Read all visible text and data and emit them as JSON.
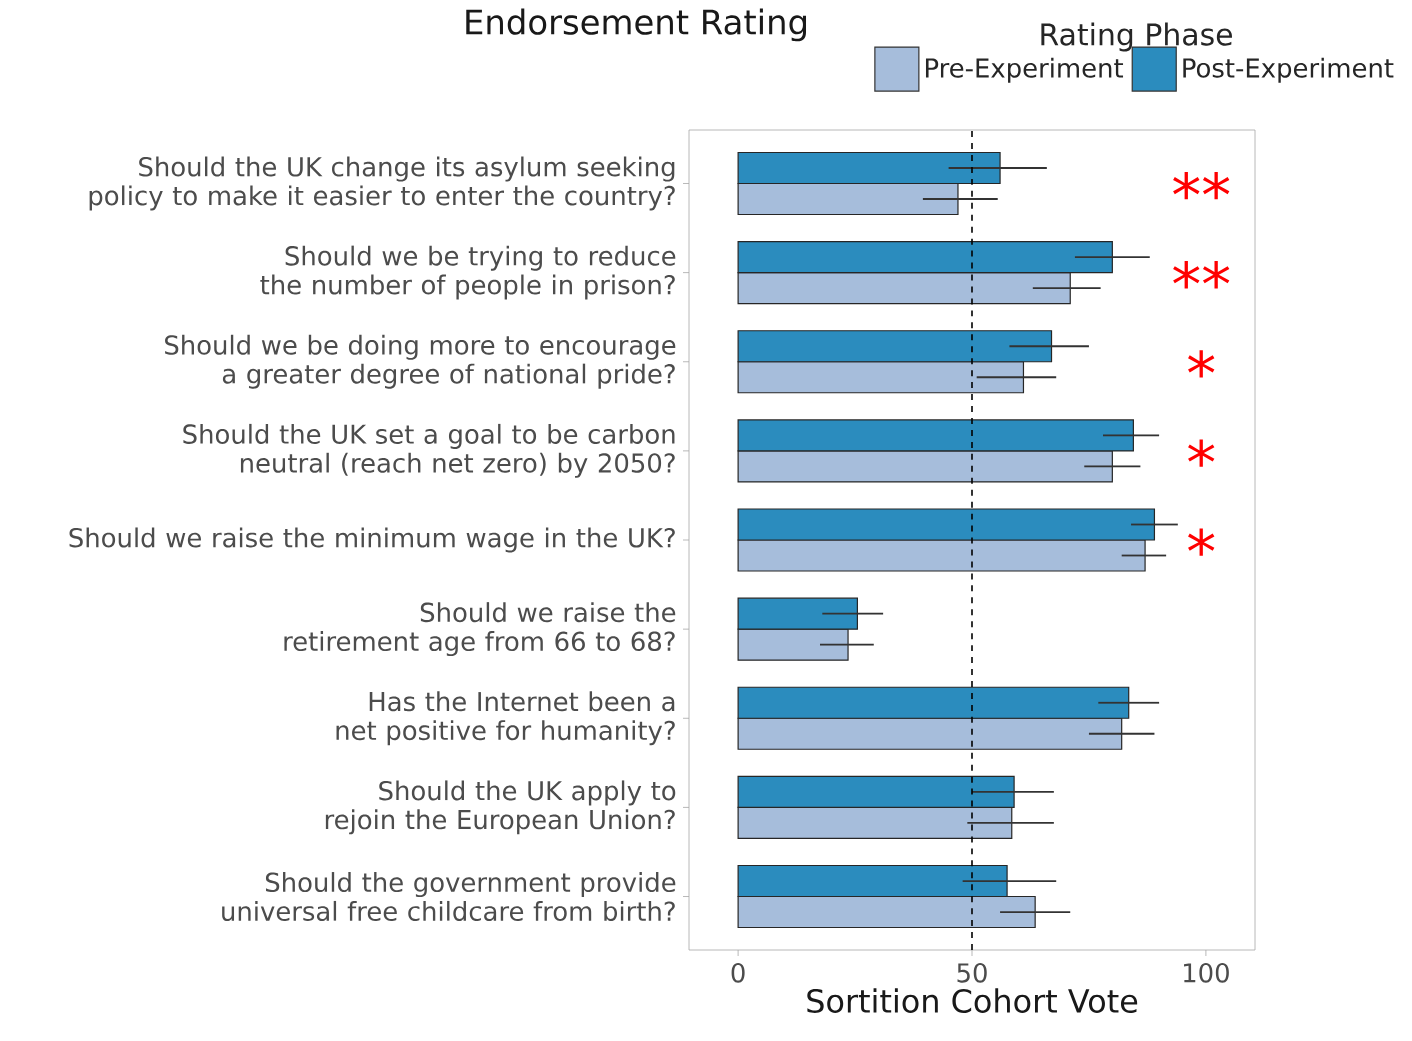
{
  "chart_data": {
    "type": "bar",
    "orientation": "horizontal",
    "title": "Endorsement Rating",
    "xlabel": "Sortition Cohort Vote",
    "legend_title": "Rating Phase",
    "legend": "top right",
    "categories": [
      "Should the UK change its asylum seeking policy to make it easier to enter the country?",
      "Should we be trying to reduce the number of people in prison?",
      "Should we be doing more to encourage a greater degree of national pride?",
      "Should the UK set a goal to be carbon neutral (reach net zero) by 2050?",
      "Should we raise the minimum wage in the UK?",
      "Should we raise the retirement age from 66 to 68?",
      "Has the Internet been a net positive for humanity?",
      "Should the UK apply to rejoin the European Union?",
      "Should the government provide universal free childcare from birth?"
    ],
    "series": [
      {
        "name": "Pre-Experiment",
        "color": "#a6bddb",
        "values": [
          47,
          71,
          61,
          80,
          87,
          23.5,
          82,
          58.5,
          63.5
        ],
        "errors": [
          [
            39.5,
            55.5
          ],
          [
            63,
            77.5
          ],
          [
            51,
            68
          ],
          [
            74,
            86
          ],
          [
            82,
            91.5
          ],
          [
            17.5,
            29
          ],
          [
            75,
            89
          ],
          [
            49,
            67.5
          ],
          [
            56,
            71
          ]
        ]
      },
      {
        "name": "Post-Experiment",
        "color": "#2b8cbe",
        "values": [
          56,
          80,
          67,
          84.5,
          89,
          25.5,
          83.5,
          59,
          57.5
        ],
        "errors": [
          [
            45,
            66
          ],
          [
            72,
            88
          ],
          [
            58,
            75
          ],
          [
            78,
            90
          ],
          [
            84,
            94
          ],
          [
            18,
            31
          ],
          [
            77,
            90
          ],
          [
            50,
            67.5
          ],
          [
            48,
            68
          ]
        ]
      }
    ],
    "xlim": [
      -10.5,
      110.5
    ],
    "xticks": [
      0,
      50,
      100
    ],
    "grid": false,
    "ref_lines": [
      {
        "axis": "x",
        "value": 50,
        "line_style": "dashed"
      }
    ],
    "annotations": [
      "**",
      "**",
      "*",
      "*",
      "*"
    ]
  }
}
